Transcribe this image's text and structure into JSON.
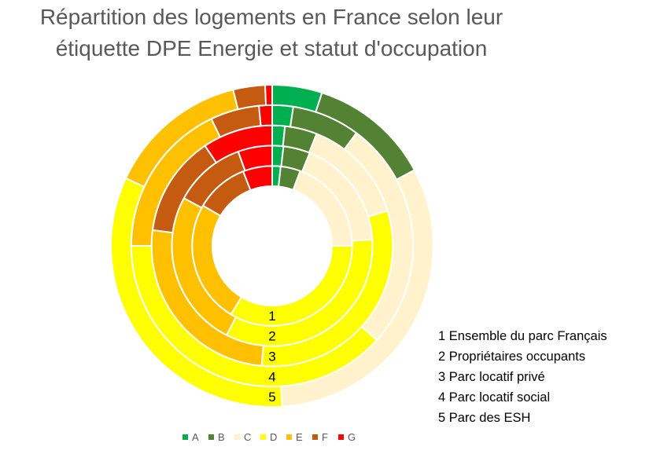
{
  "chart_data": {
    "type": "donut",
    "title": [
      "Répartition des logements en France selon leur",
      "étiquette DPE Energie et statut d'occupation"
    ],
    "categories": [
      "A",
      "B",
      "C",
      "D",
      "E",
      "F",
      "G"
    ],
    "colors": [
      "#00B050",
      "#548235",
      "#FFF2CC",
      "#FFFF00",
      "#FFC000",
      "#C55A11",
      "#FF0000"
    ],
    "unit": "%",
    "series": [
      {
        "name": "1 Ensemble du parc Français",
        "ring_label": "1",
        "values": [
          1.7,
          4.0,
          19.3,
          33.6,
          24.8,
          10.7,
          5.9
        ]
      },
      {
        "name": "2 Propriétaires occupants",
        "ring_label": "2",
        "values": [
          1.8,
          4.3,
          17.9,
          33.5,
          25.4,
          11.6,
          5.5
        ]
      },
      {
        "name": "3 Parc locatif privé",
        "ring_label": "3",
        "values": [
          1.7,
          4.3,
          14.3,
          31.1,
          25.7,
          13.5,
          9.4
        ]
      },
      {
        "name": "4 Parc locatif social",
        "ring_label": "4",
        "values": [
          2.4,
          7.8,
          26.5,
          38.3,
          17.9,
          5.6,
          1.5
        ]
      },
      {
        "name": "5 Parc des ESH",
        "ring_label": "5",
        "values": [
          5.0,
          12.2,
          31.8,
          32.9,
          14.2,
          3.2,
          0.7
        ]
      }
    ],
    "legend_position": "bottom"
  }
}
